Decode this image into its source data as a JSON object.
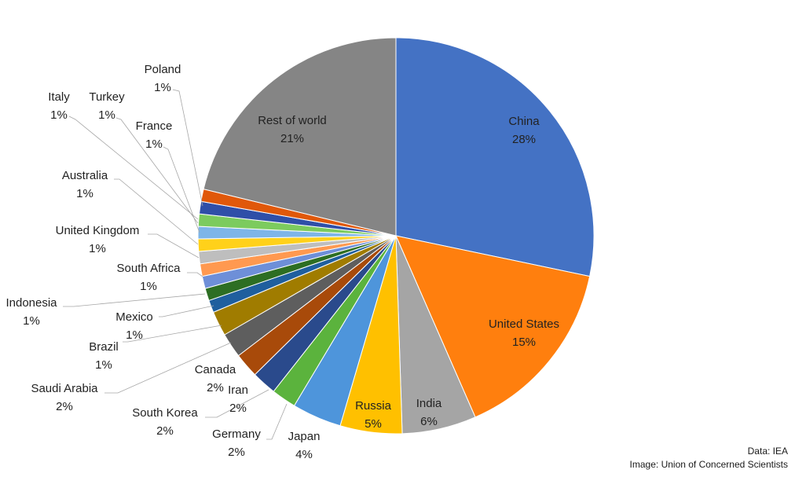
{
  "chart_data": {
    "type": "pie",
    "title": "",
    "slices": [
      {
        "label": "China",
        "value_label": "28%",
        "value": 28,
        "color": "#4472C4"
      },
      {
        "label": "United States",
        "value_label": "15%",
        "value": 15,
        "color": "#FF7F0E"
      },
      {
        "label": "India",
        "value_label": "6%",
        "value": 6,
        "color": "#A5A5A5"
      },
      {
        "label": "Russia",
        "value_label": "5%",
        "value": 5,
        "color": "#FFC000"
      },
      {
        "label": "Japan",
        "value_label": "4%",
        "value": 4,
        "color": "#4E95DB"
      },
      {
        "label": "Germany",
        "value_label": "2%",
        "value": 2,
        "color": "#5BB33D"
      },
      {
        "label": "South Korea",
        "value_label": "2%",
        "value": 2,
        "color": "#2A4A8C"
      },
      {
        "label": "Iran",
        "value_label": "2%",
        "value": 2,
        "color": "#A84A0A"
      },
      {
        "label": "Canada",
        "value_label": "2%",
        "value": 2,
        "color": "#5E5E5E"
      },
      {
        "label": "Saudi Arabia",
        "value_label": "2%",
        "value": 2,
        "color": "#A07C00"
      },
      {
        "label": "Brazil",
        "value_label": "1%",
        "value": 1,
        "color": "#1F5F9E"
      },
      {
        "label": "Mexico",
        "value_label": "1%",
        "value": 1,
        "color": "#2D6E23"
      },
      {
        "label": "Indonesia",
        "value_label": "1%",
        "value": 1,
        "color": "#6E8FD8"
      },
      {
        "label": "South Africa",
        "value_label": "1%",
        "value": 1,
        "color": "#FF9950"
      },
      {
        "label": "United Kingdom",
        "value_label": "1%",
        "value": 1,
        "color": "#BEBEBE"
      },
      {
        "label": "Australia",
        "value_label": "1%",
        "value": 1,
        "color": "#FFD11A"
      },
      {
        "label": "France",
        "value_label": "1%",
        "value": 1,
        "color": "#7EB5E8"
      },
      {
        "label": "Turkey",
        "value_label": "1%",
        "value": 1,
        "color": "#7CCB5E"
      },
      {
        "label": "Italy",
        "value_label": "1%",
        "value": 1,
        "color": "#2F4FA8"
      },
      {
        "label": "Poland",
        "value_label": "1%",
        "value": 1,
        "color": "#E0580A"
      },
      {
        "label": "Rest of world",
        "value_label": "21%",
        "value": 21,
        "color": "#858585"
      }
    ]
  },
  "credits": {
    "data": "Data: IEA",
    "image": "Image: Union of Concerned Scientists"
  }
}
